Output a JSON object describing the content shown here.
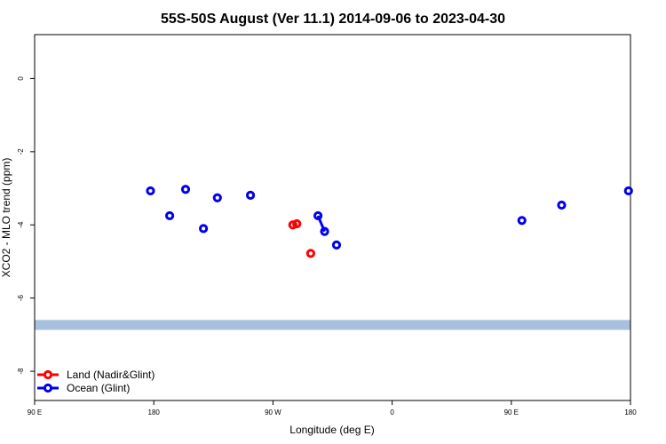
{
  "chart_data": {
    "type": "scatter",
    "title": "55S-50S August (Ver 11.1)   2014-09-06 to 2023-04-30",
    "xlabel": "Longitude (deg E)",
    "ylabel": "XCO2 - MLO trend (ppm)",
    "xlim": [
      90,
      540
    ],
    "ylim": [
      -8.8,
      1.2
    ],
    "x_ticks": [
      {
        "value": 90,
        "label": "90 E"
      },
      {
        "value": 180,
        "label": "180"
      },
      {
        "value": 270,
        "label": "90 W"
      },
      {
        "value": 360,
        "label": "0"
      },
      {
        "value": 450,
        "label": "90 E"
      },
      {
        "value": 540,
        "label": "180"
      }
    ],
    "y_ticks": [
      {
        "value": 0,
        "label": "0"
      },
      {
        "value": -2,
        "label": "-2"
      },
      {
        "value": -4,
        "label": "-4"
      },
      {
        "value": -6,
        "label": "-6"
      },
      {
        "value": -8,
        "label": "-8"
      }
    ],
    "land_band": {
      "ymin": -6.87,
      "ymax": -6.6,
      "color": "#a9bfdf"
    },
    "series": [
      {
        "name": "Land (Nadir&Glint)",
        "color": "#ff0000",
        "points": [
          {
            "x": 285.0,
            "y": -4.0
          },
          {
            "x": 288.0,
            "y": -3.97
          },
          {
            "x": 298.5,
            "y": -4.78
          }
        ],
        "segments": [
          [
            0,
            1
          ]
        ]
      },
      {
        "name": "Ocean (Glint)",
        "color": "#0000ee",
        "points": [
          {
            "x": 177.5,
            "y": -3.07
          },
          {
            "x": 192.0,
            "y": -3.75
          },
          {
            "x": 204.0,
            "y": -3.03
          },
          {
            "x": 217.5,
            "y": -4.1
          },
          {
            "x": 228.0,
            "y": -3.26
          },
          {
            "x": 253.0,
            "y": -3.19
          },
          {
            "x": 304.0,
            "y": -3.75
          },
          {
            "x": 309.0,
            "y": -4.18
          },
          {
            "x": 318.0,
            "y": -4.55
          },
          {
            "x": 458.0,
            "y": -3.88
          },
          {
            "x": 488.0,
            "y": -3.46
          },
          {
            "x": 538.5,
            "y": -3.07
          }
        ],
        "segments": [
          [
            6,
            7
          ]
        ]
      }
    ],
    "legend_position": "bottom-left",
    "grid": false
  }
}
